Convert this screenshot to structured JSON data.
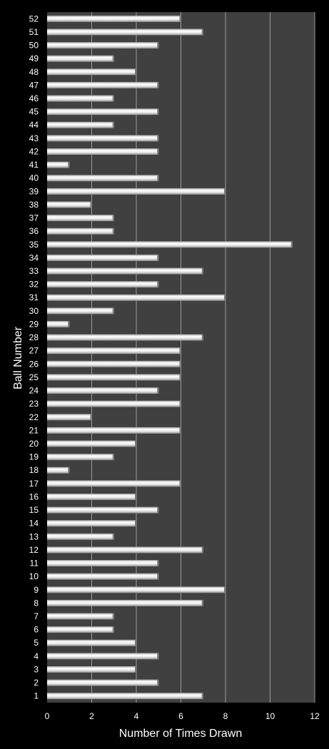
{
  "chart_data": {
    "type": "bar",
    "orientation": "horizontal",
    "xlabel": "Number of Times Drawn",
    "ylabel": "Ball Number",
    "xlim": [
      0,
      12
    ],
    "x_ticks": [
      "0",
      "2",
      "4",
      "6",
      "8",
      "10",
      "12"
    ],
    "grid": "vertical",
    "categories": [
      "1",
      "2",
      "3",
      "4",
      "5",
      "6",
      "7",
      "8",
      "9",
      "10",
      "11",
      "12",
      "13",
      "14",
      "15",
      "16",
      "17",
      "18",
      "19",
      "20",
      "21",
      "22",
      "23",
      "24",
      "25",
      "26",
      "27",
      "28",
      "29",
      "30",
      "31",
      "32",
      "33",
      "34",
      "35",
      "36",
      "37",
      "38",
      "39",
      "40",
      "41",
      "42",
      "43",
      "44",
      "45",
      "46",
      "47",
      "48",
      "49",
      "50",
      "51",
      "52"
    ],
    "values": [
      7,
      5,
      4,
      5,
      4,
      3,
      3,
      7,
      8,
      5,
      5,
      7,
      3,
      4,
      5,
      4,
      6,
      1,
      3,
      4,
      6,
      2,
      6,
      5,
      6,
      6,
      6,
      7,
      1,
      3,
      8,
      5,
      7,
      5,
      11,
      3,
      3,
      2,
      8,
      5,
      1,
      5,
      5,
      3,
      5,
      3,
      5,
      4,
      3,
      5,
      7,
      6
    ],
    "colors": {
      "page_background": "#000000",
      "plot_background": "#404040",
      "bar_fill": "#e8e8e8",
      "gridline": "#9a9a9a",
      "text": "#ffffff"
    }
  }
}
